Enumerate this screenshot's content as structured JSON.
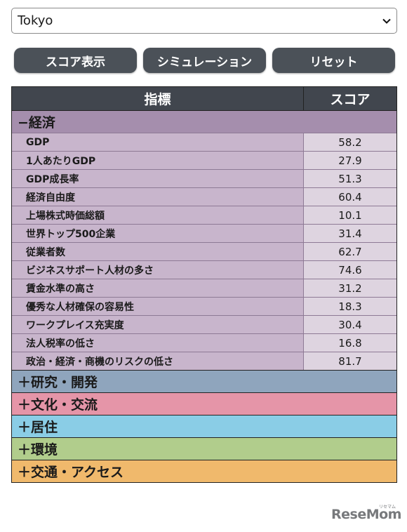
{
  "city_select": {
    "value": "Tokyo"
  },
  "buttons": {
    "show_score": "スコア表示",
    "simulation": "シミュレーション",
    "reset": "リセット"
  },
  "table": {
    "header": {
      "indicator": "指標",
      "score": "スコア"
    },
    "economy": {
      "label": "−経済",
      "color": "#a58ead",
      "rows": [
        {
          "label": "GDP",
          "score": "58.2"
        },
        {
          "label": "1人あたりGDP",
          "score": "27.9"
        },
        {
          "label": "GDP成長率",
          "score": "51.3"
        },
        {
          "label": "経済自由度",
          "score": "60.4"
        },
        {
          "label": "上場株式時価総額",
          "score": "10.1"
        },
        {
          "label": "世界トップ500企業",
          "score": "31.4"
        },
        {
          "label": "従業者数",
          "score": "62.7"
        },
        {
          "label": "ビジネスサポート人材の多さ",
          "score": "74.6"
        },
        {
          "label": "賃金水準の高さ",
          "score": "31.2"
        },
        {
          "label": "優秀な人材確保の容易性",
          "score": "18.3"
        },
        {
          "label": "ワークプレイス充実度",
          "score": "30.4"
        },
        {
          "label": "法人税率の低さ",
          "score": "16.8"
        },
        {
          "label": "政治・経済・商機のリスクの低さ",
          "score": "81.7"
        }
      ]
    },
    "collapsed": [
      {
        "label": "＋研究・開発",
        "color": "#8fa5bd"
      },
      {
        "label": "＋文化・交流",
        "color": "#e595a8"
      },
      {
        "label": "＋居住",
        "color": "#8acde6"
      },
      {
        "label": "＋環境",
        "color": "#b1cd8c"
      },
      {
        "label": "＋交通・アクセス",
        "color": "#f0b96c"
      }
    ]
  },
  "logo": {
    "text": "ReseMom",
    "small": "リセマム"
  }
}
